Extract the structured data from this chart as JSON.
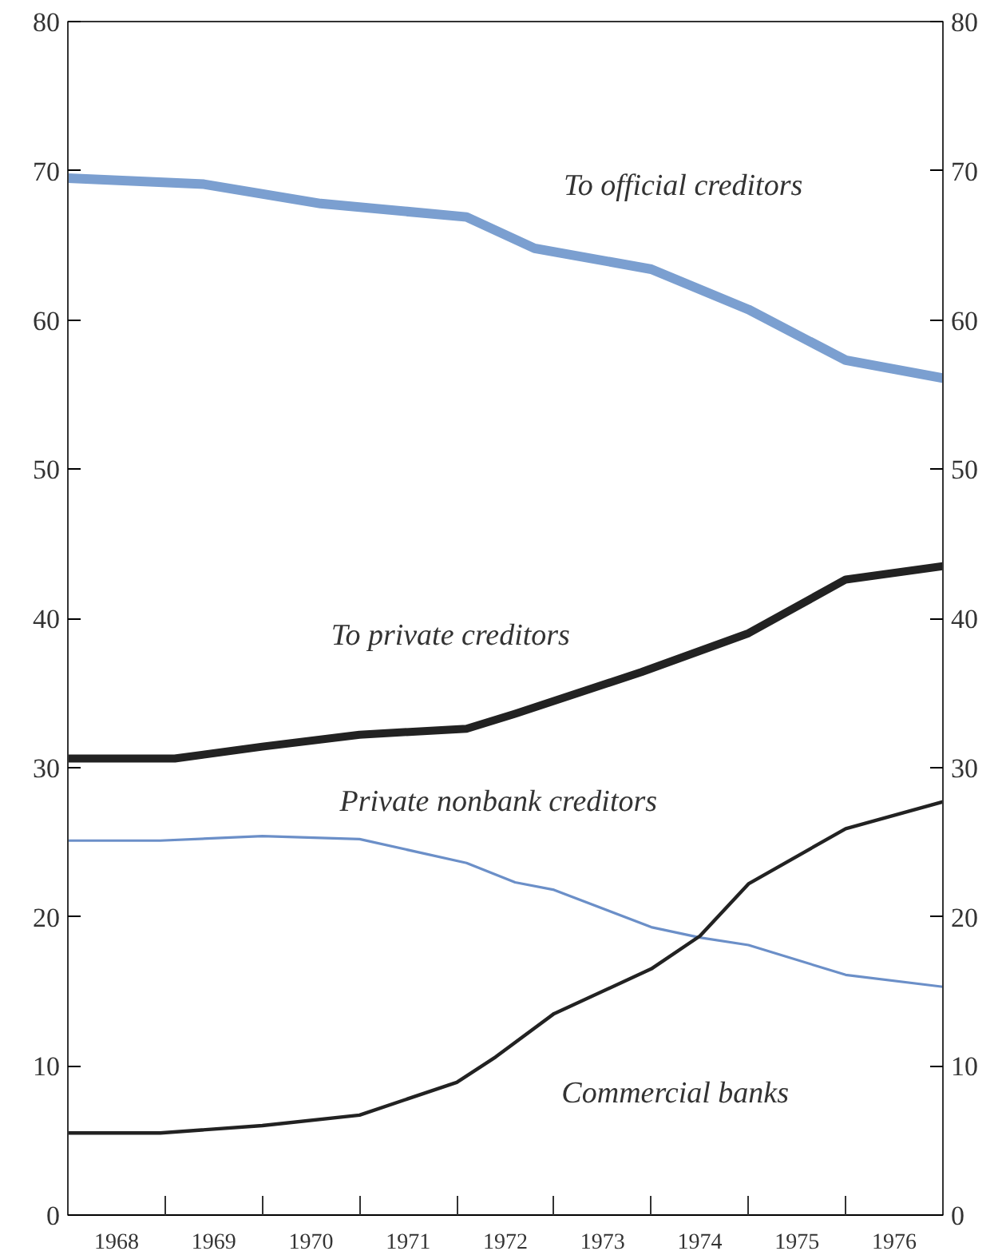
{
  "chart_data": {
    "type": "line",
    "xlim": [
      1968,
      1977
    ],
    "xticks": [
      {
        "value": 1968.5,
        "label": "1968"
      },
      {
        "value": 1969,
        "label": null
      },
      {
        "value": 1969.5,
        "label": "1969"
      },
      {
        "value": 1970,
        "label": null
      },
      {
        "value": 1970.5,
        "label": "1970"
      },
      {
        "value": 1971,
        "label": null
      },
      {
        "value": 1971.5,
        "label": "1971"
      },
      {
        "value": 1972,
        "label": null
      },
      {
        "value": 1972.5,
        "label": "1972"
      },
      {
        "value": 1973,
        "label": null
      },
      {
        "value": 1973.5,
        "label": "1973"
      },
      {
        "value": 1974,
        "label": null
      },
      {
        "value": 1974.5,
        "label": "1974"
      },
      {
        "value": 1975,
        "label": null
      },
      {
        "value": 1975.5,
        "label": "1975"
      },
      {
        "value": 1976,
        "label": null
      },
      {
        "value": 1976.5,
        "label": "1976"
      }
    ],
    "ylim": [
      0,
      80
    ],
    "yticks": [
      0,
      10,
      20,
      30,
      40,
      50,
      60,
      70,
      80
    ],
    "y2lim": [
      0,
      80
    ],
    "y2ticks": [
      0,
      10,
      20,
      30,
      40,
      50,
      60,
      70,
      80
    ],
    "grid": false,
    "marker": "none",
    "series": [
      {
        "name": "To official creditors",
        "color": "#7b9fd0",
        "x": [
          1968,
          1969.4,
          1970.6,
          1972.1,
          1972.8,
          1974.0,
          1975.0,
          1976.0,
          1977.0
        ],
        "values": [
          69.5,
          69.1,
          67.8,
          66.9,
          64.8,
          63.4,
          60.7,
          57.3,
          56.1
        ]
      },
      {
        "name": "To private creditors",
        "color": "#222222",
        "x": [
          1968,
          1969.1,
          1970.0,
          1971.0,
          1972.1,
          1972.6,
          1973.9,
          1975.0,
          1976.0,
          1977.0
        ],
        "values": [
          30.6,
          30.6,
          31.4,
          32.2,
          32.6,
          33.6,
          36.4,
          39.0,
          42.6,
          43.5
        ]
      },
      {
        "name": "Private nonbank creditors",
        "color": "#6b8fc8",
        "x": [
          1968,
          1968.95,
          1970.0,
          1971.0,
          1972.1,
          1972.6,
          1973.0,
          1974.0,
          1974.5,
          1975.0,
          1976.0,
          1977.0
        ],
        "values": [
          25.1,
          25.1,
          25.4,
          25.2,
          23.6,
          22.3,
          21.8,
          19.3,
          18.6,
          18.1,
          16.1,
          15.3
        ]
      },
      {
        "name": "Commercial banks",
        "color": "#222222",
        "x": [
          1968,
          1968.95,
          1970.0,
          1971.0,
          1972.0,
          1972.4,
          1973.0,
          1974.0,
          1974.5,
          1975.0,
          1976.0,
          1977.0
        ],
        "values": [
          5.5,
          5.5,
          6.0,
          6.7,
          8.9,
          10.6,
          13.5,
          16.5,
          18.7,
          22.2,
          25.9,
          27.7
        ]
      }
    ]
  }
}
